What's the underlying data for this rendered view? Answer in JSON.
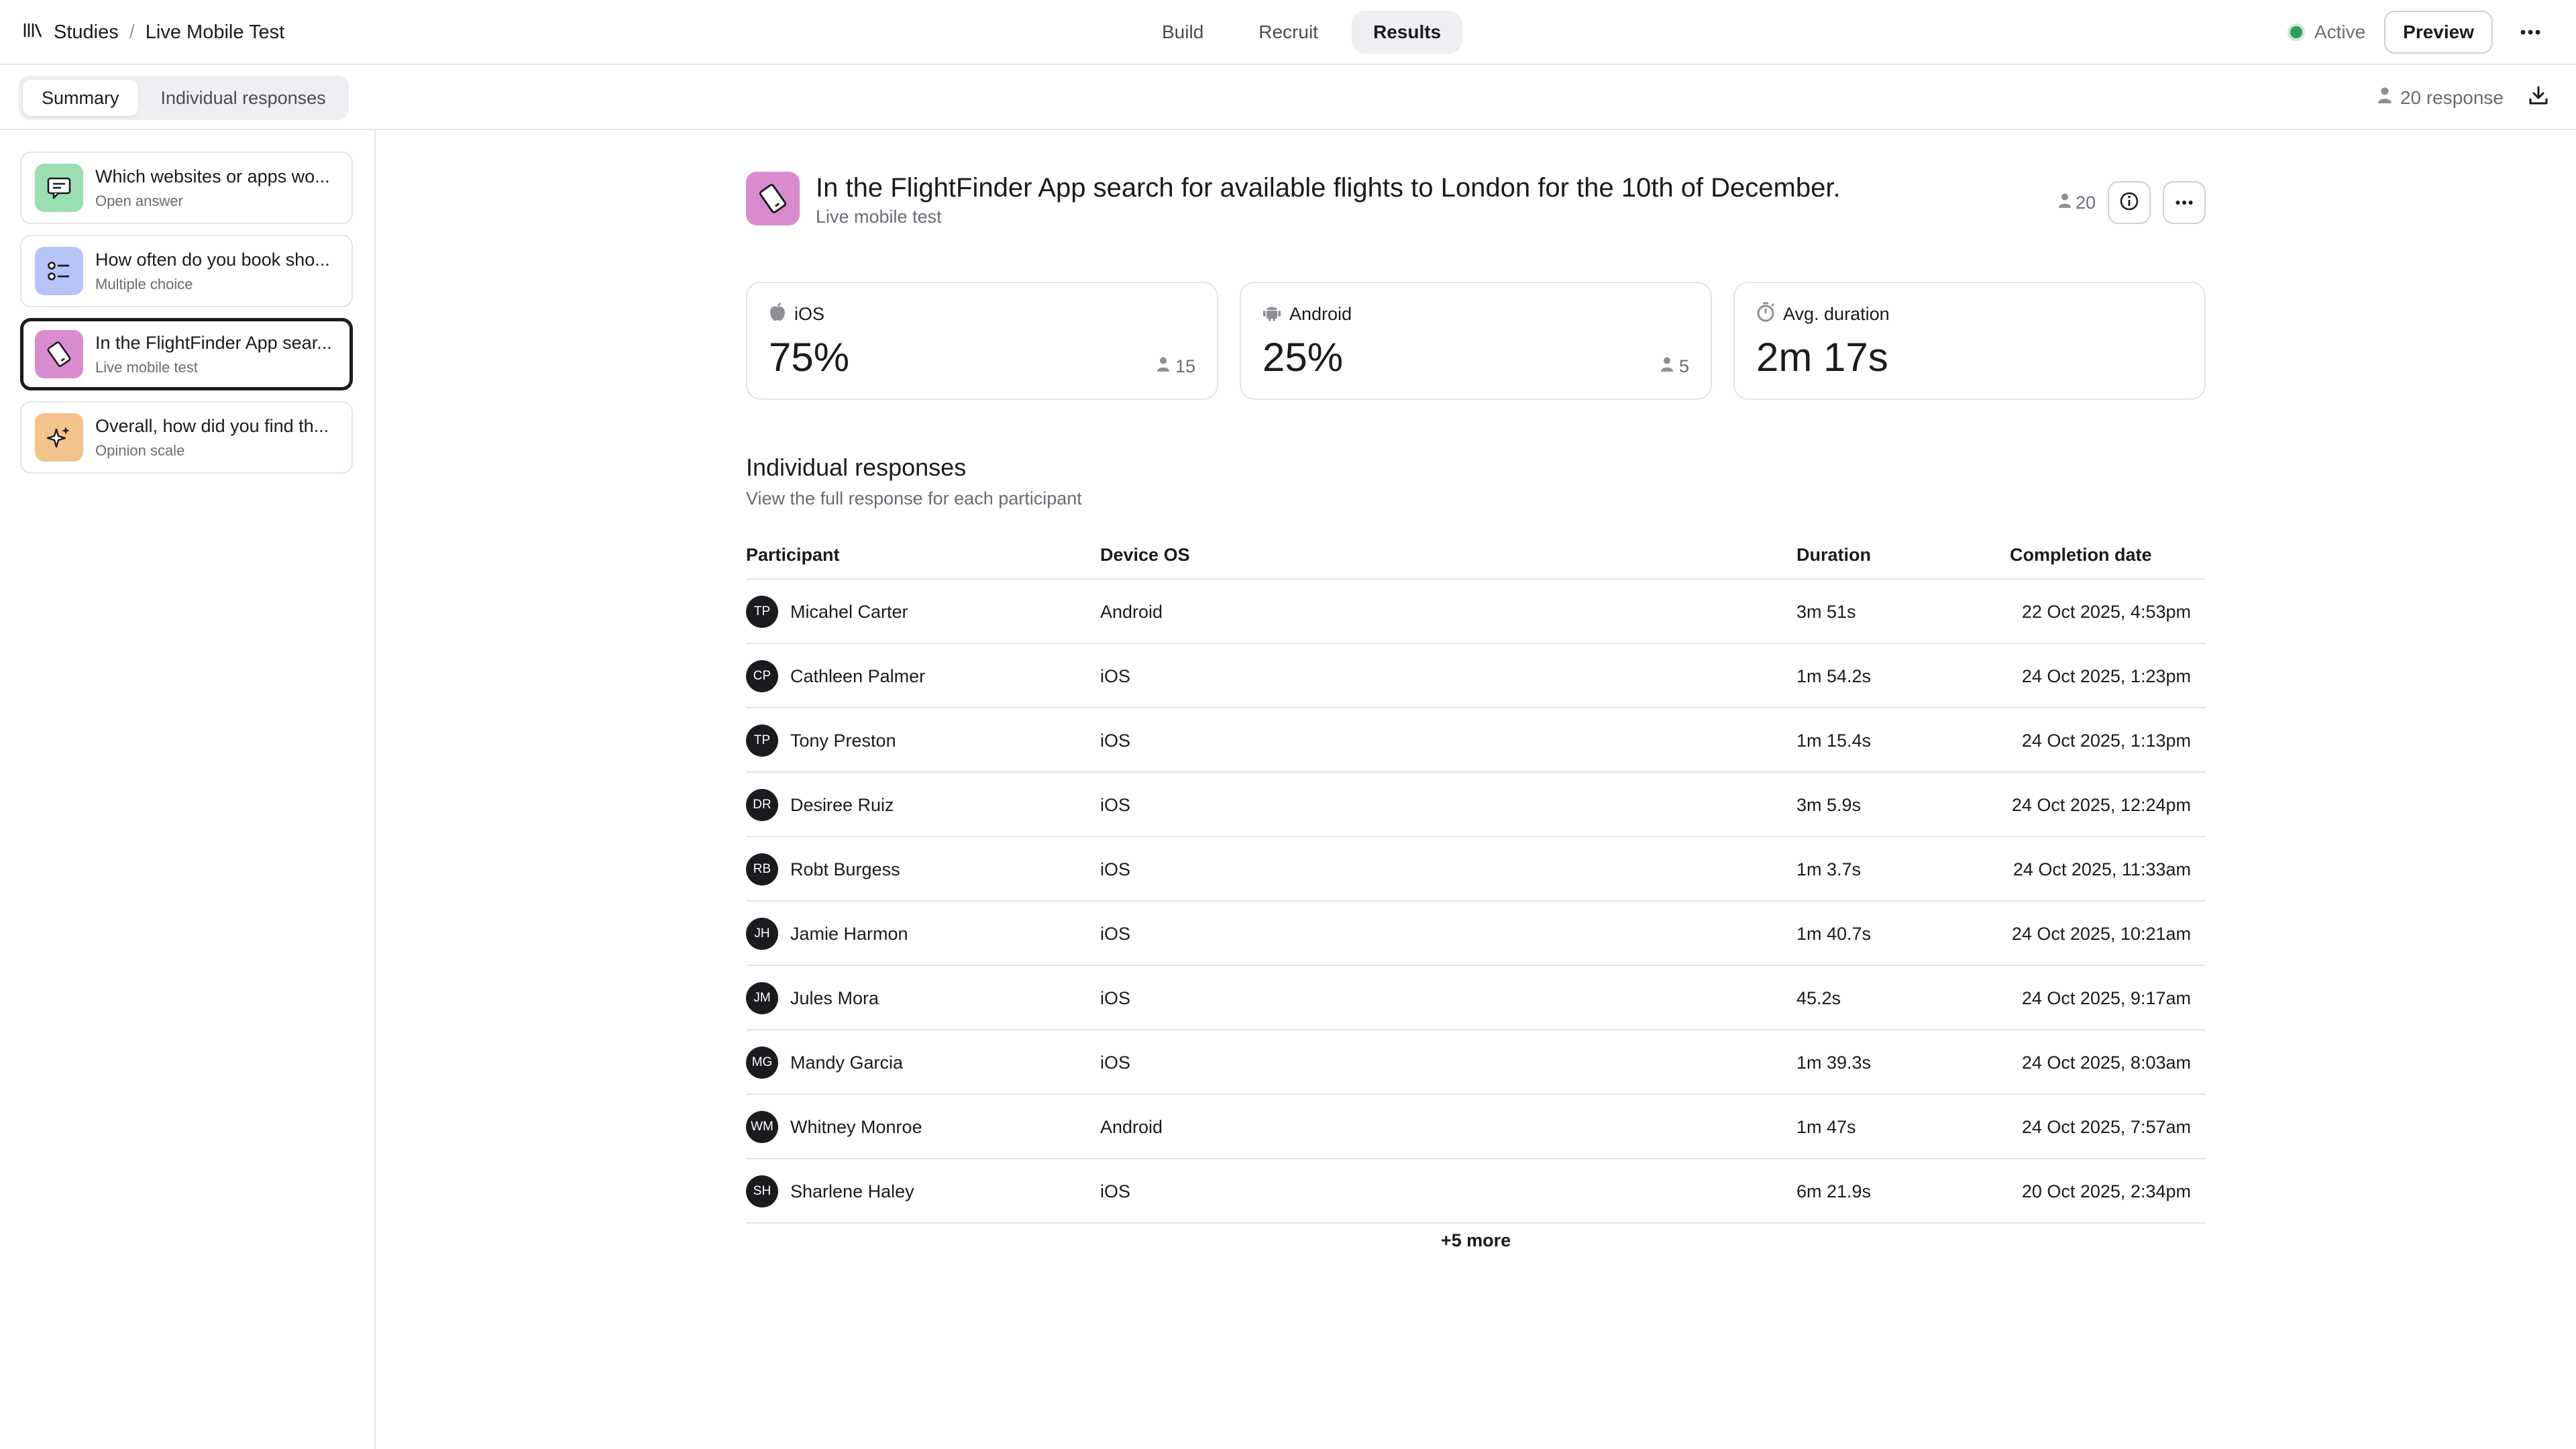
{
  "breadcrumb": {
    "root": "Studies",
    "separator": "/",
    "current": "Live Mobile Test"
  },
  "nav": {
    "tabs": [
      "Build",
      "Recruit",
      "Results"
    ],
    "active": "Results"
  },
  "header_right": {
    "status": "Active",
    "preview_label": "Preview"
  },
  "subnav": {
    "tabs": [
      "Summary",
      "Individual responses"
    ],
    "active": "Summary",
    "response_count": "20 response"
  },
  "colors": {
    "green": "#9adfb0",
    "blue": "#b6c3f7",
    "pink": "#d98bd0",
    "orange": "#f2c38a",
    "active": "#2f9e5c"
  },
  "sidebar": {
    "cards": [
      {
        "title": "Which websites or apps wo...",
        "type": "Open answer",
        "icon": "chat-icon",
        "color": "#9adfb0",
        "selected": false
      },
      {
        "title": "How often do you book sho...",
        "type": "Multiple choice",
        "icon": "list-icon",
        "color": "#b6c3f7",
        "selected": false
      },
      {
        "title": "In the FlightFinder App sear...",
        "type": "Live mobile test",
        "icon": "mobile-icon",
        "color": "#d98bd0",
        "selected": true
      },
      {
        "title": "Overall, how did you find th...",
        "type": "Opinion scale",
        "icon": "sparkle-icon",
        "color": "#f2c38a",
        "selected": false
      }
    ]
  },
  "question": {
    "title": "In the FlightFinder App search for available flights to London for the 10th of December.",
    "type": "Live mobile test",
    "participants": "20"
  },
  "stats": [
    {
      "label": "iOS",
      "value": "75%",
      "count": "15",
      "icon": "apple-icon"
    },
    {
      "label": "Android",
      "value": "25%",
      "count": "5",
      "icon": "android-icon"
    },
    {
      "label": "Avg. duration",
      "value": "2m 17s",
      "icon": "timer-icon"
    }
  ],
  "responses": {
    "title": "Individual responses",
    "subtitle": "View the full response for each participant",
    "columns": [
      "Participant",
      "Device OS",
      "Duration",
      "Completion date"
    ],
    "rows": [
      {
        "initials": "TP",
        "name": "Micahel Carter",
        "os": "Android",
        "duration": "3m 51s",
        "date": "22 Oct 2025, 4:53pm"
      },
      {
        "initials": "CP",
        "name": "Cathleen Palmer",
        "os": "iOS",
        "duration": "1m 54.2s",
        "date": "24 Oct 2025, 1:23pm"
      },
      {
        "initials": "TP",
        "name": "Tony Preston",
        "os": "iOS",
        "duration": "1m 15.4s",
        "date": "24 Oct 2025, 1:13pm"
      },
      {
        "initials": "DR",
        "name": "Desiree Ruiz",
        "os": "iOS",
        "duration": "3m 5.9s",
        "date": "24 Oct 2025, 12:24pm"
      },
      {
        "initials": "RB",
        "name": "Robt Burgess",
        "os": "iOS",
        "duration": "1m 3.7s",
        "date": "24 Oct 2025, 11:33am"
      },
      {
        "initials": "JH",
        "name": "Jamie Harmon",
        "os": "iOS",
        "duration": "1m 40.7s",
        "date": "24 Oct 2025, 10:21am"
      },
      {
        "initials": "JM",
        "name": "Jules Mora",
        "os": "iOS",
        "duration": "45.2s",
        "date": "24 Oct 2025, 9:17am"
      },
      {
        "initials": "MG",
        "name": "Mandy Garcia",
        "os": "iOS",
        "duration": "1m 39.3s",
        "date": "24 Oct 2025, 8:03am"
      },
      {
        "initials": "WM",
        "name": "Whitney Monroe",
        "os": "Android",
        "duration": "1m 47s",
        "date": "24 Oct 2025, 7:57am"
      },
      {
        "initials": "SH",
        "name": "Sharlene Haley",
        "os": "iOS",
        "duration": "6m 21.9s",
        "date": "20 Oct 2025, 2:34pm"
      }
    ],
    "more_label": "+5 more"
  }
}
